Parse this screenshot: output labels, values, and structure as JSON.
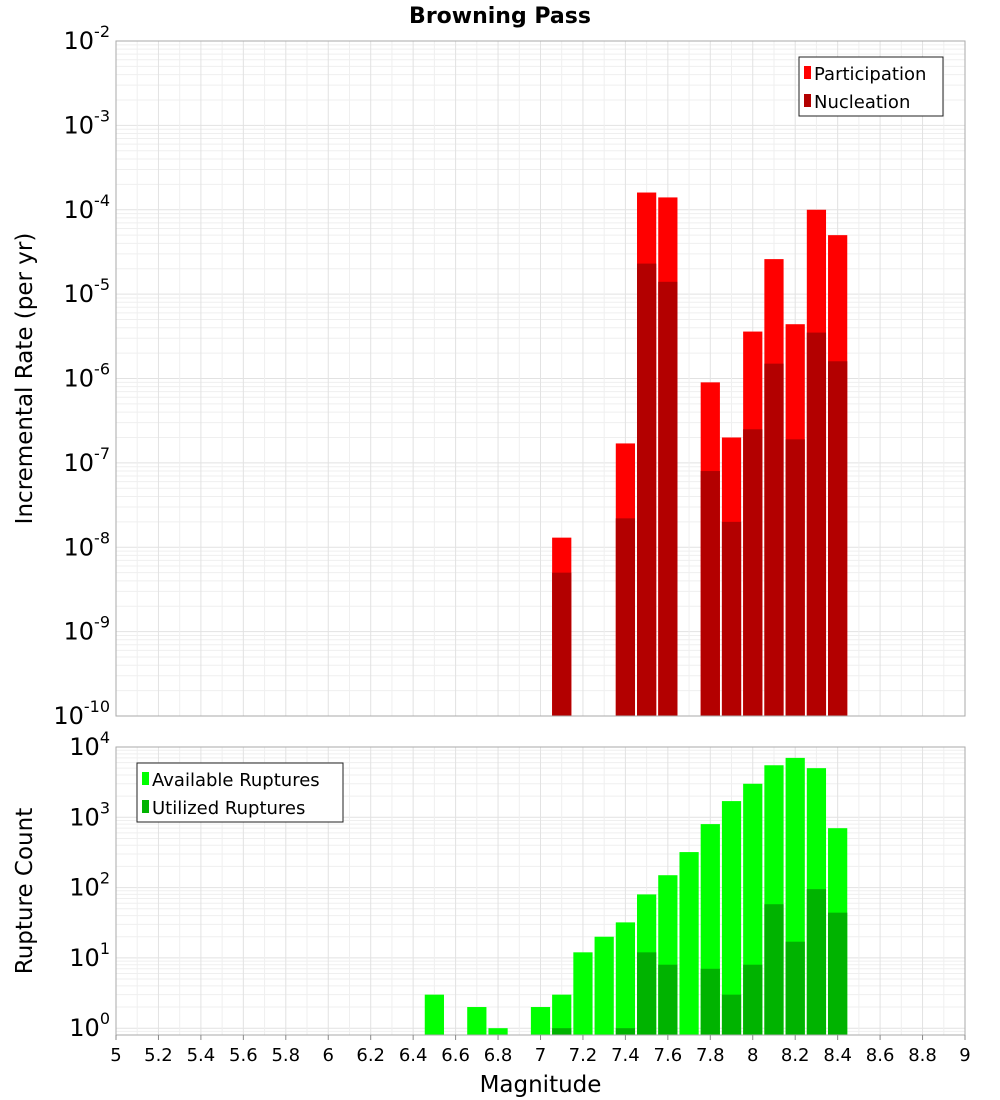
{
  "chart_data": [
    {
      "type": "bar",
      "title": "Browning Pass",
      "ylabel": "Incremental Rate (per yr)",
      "xlabel": "",
      "y_scale": "log",
      "ylim": [
        1e-10,
        0.01
      ],
      "xlim": [
        5,
        9
      ],
      "grid": true,
      "legend_position": "top-right",
      "bar_width": 0.1,
      "x": [
        7.1,
        7.4,
        7.5,
        7.6,
        7.8,
        7.9,
        8.0,
        8.1,
        8.2,
        8.3,
        8.4
      ],
      "series": [
        {
          "name": "Participation",
          "color": "#ff0000",
          "values": [
            1.3e-08,
            1.7e-07,
            0.00016,
            0.00014,
            9e-07,
            2e-07,
            3.6e-06,
            2.6e-05,
            4.4e-06,
            0.0001,
            5e-05
          ]
        },
        {
          "name": "Nucleation",
          "color": "#b30000",
          "values": [
            5e-09,
            2.2e-08,
            2.3e-05,
            1.4e-05,
            8e-08,
            2e-08,
            2.5e-07,
            1.5e-06,
            1.9e-07,
            3.5e-06,
            1.6e-06
          ]
        }
      ],
      "y_ticks": [
        {
          "base": "10",
          "exp": "-10"
        },
        {
          "base": "10",
          "exp": "-9"
        },
        {
          "base": "10",
          "exp": "-8"
        },
        {
          "base": "10",
          "exp": "-7"
        },
        {
          "base": "10",
          "exp": "-6"
        },
        {
          "base": "10",
          "exp": "-5"
        },
        {
          "base": "10",
          "exp": "-4"
        },
        {
          "base": "10",
          "exp": "-3"
        },
        {
          "base": "10",
          "exp": "-2"
        }
      ]
    },
    {
      "type": "bar",
      "title": "",
      "ylabel": "Rupture Count",
      "xlabel": "Magnitude",
      "y_scale": "log",
      "ylim": [
        0.8,
        10000
      ],
      "xlim": [
        5,
        9
      ],
      "grid": true,
      "legend_position": "top-left",
      "bar_width": 0.1,
      "x": [
        6.5,
        6.7,
        6.8,
        7.0,
        7.1,
        7.2,
        7.3,
        7.4,
        7.5,
        7.6,
        7.7,
        7.8,
        7.9,
        8.0,
        8.1,
        8.2,
        8.3,
        8.4
      ],
      "series": [
        {
          "name": "Available Ruptures",
          "color": "#00ff00",
          "values": [
            3,
            2,
            1,
            2,
            3,
            12,
            20,
            32,
            80,
            150,
            320,
            800,
            1700,
            3000,
            5500,
            7000,
            5000,
            700
          ]
        },
        {
          "name": "Utilized Ruptures",
          "color": "#00b300",
          "values": [
            null,
            null,
            null,
            null,
            1,
            null,
            null,
            1,
            12,
            8,
            null,
            7,
            3,
            8,
            58,
            17,
            95,
            44
          ]
        }
      ],
      "y_ticks": [
        {
          "base": "10",
          "exp": "0"
        },
        {
          "base": "10",
          "exp": "1"
        },
        {
          "base": "10",
          "exp": "2"
        },
        {
          "base": "10",
          "exp": "3"
        },
        {
          "base": "10",
          "exp": "4"
        }
      ],
      "x_ticks": [
        "5",
        "5.2",
        "5.4",
        "5.6",
        "5.8",
        "6",
        "6.2",
        "6.4",
        "6.6",
        "6.8",
        "7",
        "7.2",
        "7.4",
        "7.6",
        "7.8",
        "8",
        "8.2",
        "8.4",
        "8.6",
        "8.8",
        "9"
      ]
    }
  ]
}
